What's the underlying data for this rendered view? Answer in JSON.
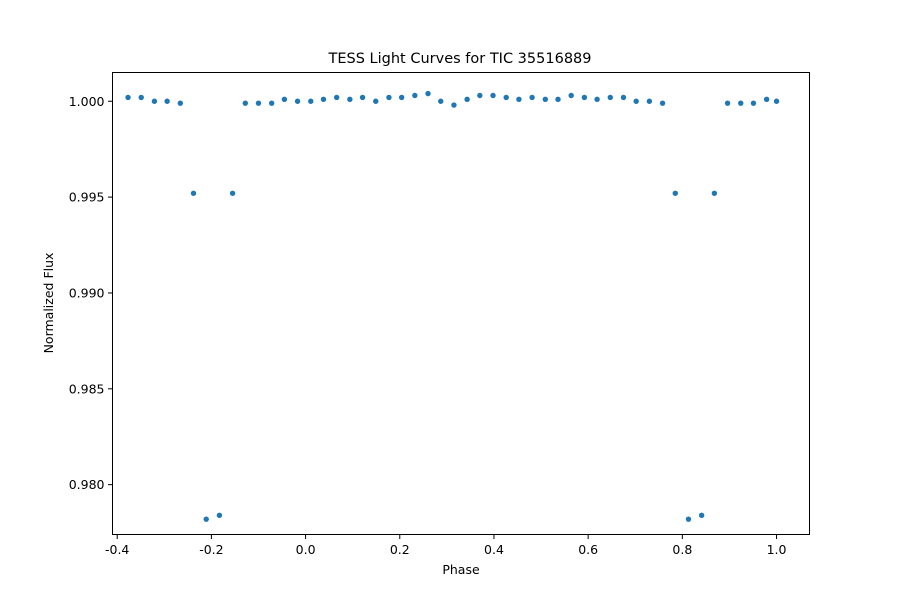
{
  "chart_data": {
    "type": "scatter",
    "title": "TESS Light Curves for TIC 35516889",
    "xlabel": "Phase",
    "ylabel": "Normalized Flux",
    "xlim": [
      -0.41,
      1.07
    ],
    "ylim": [
      0.9774,
      1.0015
    ],
    "xticks": [
      "-0.4",
      "-0.2",
      "0.0",
      "0.2",
      "0.4",
      "0.6",
      "0.8",
      "1.0"
    ],
    "xtick_values": [
      -0.4,
      -0.2,
      0.0,
      0.2,
      0.4,
      0.6,
      0.8,
      1.0
    ],
    "yticks": [
      "0.980",
      "0.985",
      "0.990",
      "0.995",
      "1.000"
    ],
    "ytick_values": [
      0.98,
      0.985,
      0.99,
      0.995,
      1.0
    ],
    "grid": false,
    "marker_color": "#1f77b4",
    "series": [
      {
        "x": [
          -0.377,
          -0.349,
          -0.321,
          -0.294,
          -0.266,
          -0.238,
          -0.211,
          -0.183,
          -0.155,
          -0.128,
          -0.1,
          -0.072,
          -0.045,
          -0.017,
          0.011,
          0.038,
          0.066,
          0.094,
          0.121,
          0.149,
          0.177,
          0.204,
          0.232,
          0.26,
          0.287,
          0.315,
          0.343,
          0.37,
          0.398,
          0.426,
          0.453,
          0.481,
          0.509,
          0.536,
          0.564,
          0.592,
          0.619,
          0.647,
          0.675,
          0.702,
          0.73,
          0.758,
          0.785,
          0.813,
          0.841,
          0.868,
          0.896,
          0.924,
          0.951,
          0.979,
          1.0
        ],
        "y": [
          1.0002,
          1.0002,
          1.0,
          1.0,
          0.9999,
          0.9952,
          0.9782,
          0.9784,
          0.9952,
          0.9999,
          0.9999,
          0.9999,
          1.0001,
          1.0,
          1.0,
          1.0001,
          1.0002,
          1.0001,
          1.0002,
          1.0,
          1.0002,
          1.0002,
          1.0003,
          1.0004,
          1.0,
          0.9998,
          1.0001,
          1.0003,
          1.0003,
          1.0002,
          1.0001,
          1.0002,
          1.0001,
          1.0001,
          1.0003,
          1.0002,
          1.0001,
          1.0002,
          1.0002,
          1.0,
          1.0,
          0.9999,
          0.9952,
          0.9782,
          0.9784,
          0.9952,
          0.9999,
          0.9999,
          0.9999,
          1.0001,
          1.0
        ]
      }
    ]
  }
}
